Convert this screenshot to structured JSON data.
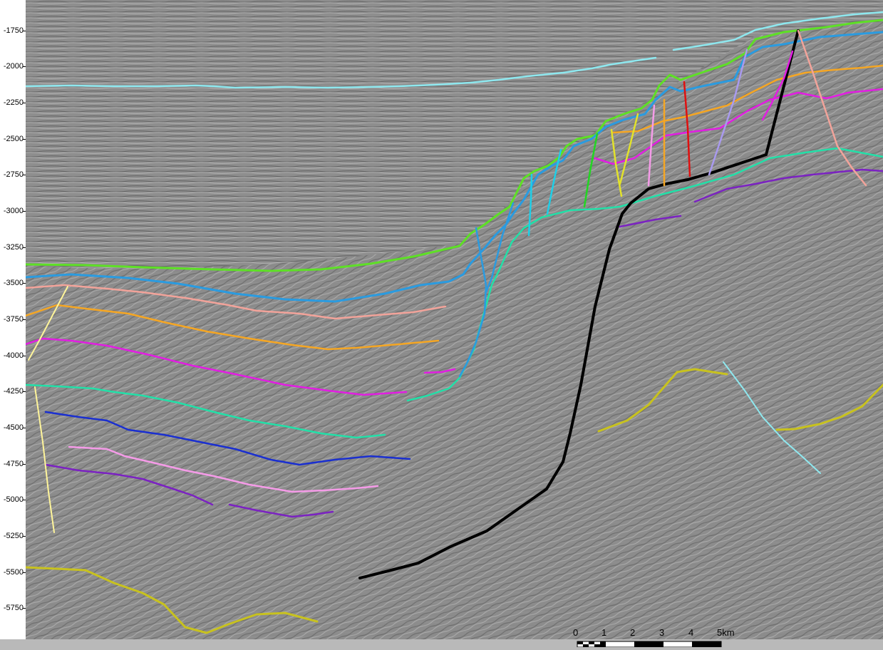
{
  "depth_axis": {
    "labels": [
      "-1750",
      "-2000",
      "-2250",
      "-2500",
      "-2750",
      "-3000",
      "-3250",
      "-3500",
      "-3750",
      "-4000",
      "-4250",
      "-4500",
      "-4750",
      "-5000",
      "-5250",
      "-5500",
      "-5750"
    ]
  },
  "scale_bar": {
    "labels": [
      "0",
      "1",
      "2",
      "3",
      "4",
      "5km"
    ]
  },
  "colors": {
    "background": "#8e8e8e",
    "main_fault": "#000000",
    "horizon_green": "#5ee026",
    "horizon_blue": "#2a9be0",
    "horizon_cyan": "#8ee8ef",
    "horizon_salmon": "#f2a39a",
    "horizon_orange": "#f5a623",
    "horizon_magenta": "#e21de2",
    "horizon_teal": "#22e0a8",
    "horizon_navy": "#1a2fd0",
    "horizon_pink": "#f59be8",
    "horizon_purple": "#7b22c2",
    "horizon_olive": "#c8c21e",
    "fault_yellow": "#fff59a",
    "fault_red": "#e01010",
    "fault_lavender": "#a99aef"
  }
}
